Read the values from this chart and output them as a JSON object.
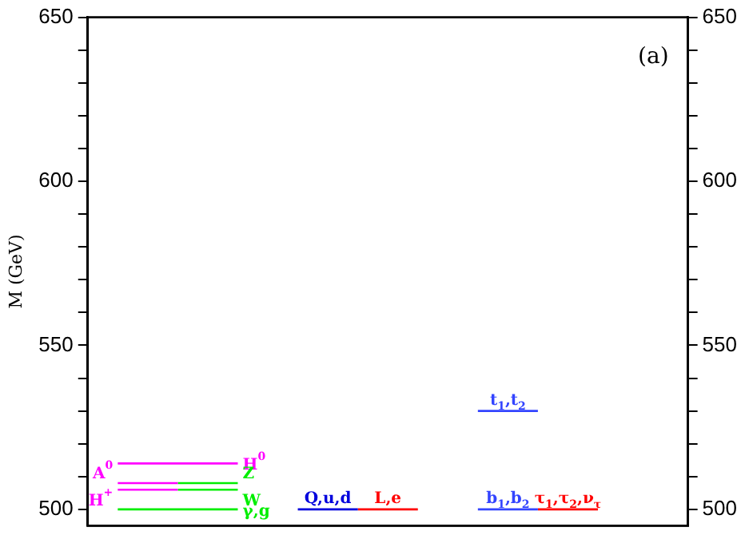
{
  "chart_data": {
    "type": "line",
    "ylabel": "M (GeV)",
    "annotations": [
      "(a)"
    ],
    "categories": [
      null,
      null,
      null,
      null,
      null,
      null,
      null,
      null,
      null,
      null
    ],
    "series": [
      {
        "name": "H$^{0}$",
        "color": "#ff00ff",
        "values": [
          514,
          514,
          514,
          null,
          null,
          null,
          null,
          null,
          null,
          null
        ]
      },
      {
        "name": "A$^{0}$",
        "color": "#ff00ff",
        "values": [
          508,
          508,
          null,
          null,
          null,
          null,
          null,
          null,
          null,
          null
        ]
      },
      {
        "name": "Z",
        "color": "#00ee00",
        "values": [
          null,
          508,
          508,
          null,
          null,
          null,
          null,
          null,
          null,
          null
        ]
      },
      {
        "name": "H$^{+}$",
        "color": "#ff00ff",
        "values": [
          506,
          506,
          null,
          null,
          null,
          null,
          null,
          null,
          null,
          null
        ]
      },
      {
        "name": "W",
        "color": "#00ee00",
        "values": [
          null,
          506,
          506,
          null,
          null,
          null,
          null,
          null,
          null,
          null
        ]
      },
      {
        "name": "γ,g",
        "color": "#00ee00",
        "values": [
          500,
          500,
          500,
          null,
          null,
          null,
          null,
          null,
          null,
          null
        ]
      },
      {
        "name": "Q,u,d",
        "color": "#0000dd",
        "values": [
          null,
          null,
          null,
          500,
          500,
          null,
          null,
          null,
          null,
          null
        ]
      },
      {
        "name": "L,e",
        "color": "#ff0000",
        "values": [
          null,
          null,
          null,
          null,
          500,
          500,
          null,
          null,
          null,
          null
        ]
      },
      {
        "name": "b$_{1}$,b$_{2}$",
        "color": "#3344ff",
        "values": [
          null,
          null,
          null,
          null,
          null,
          null,
          500,
          500,
          null,
          null
        ]
      },
      {
        "name": "τ$_{1}$,τ$_{2}$,ν$_{τ}$",
        "color": "#ff0000",
        "values": [
          null,
          null,
          null,
          null,
          null,
          null,
          null,
          500,
          500,
          null
        ]
      },
      {
        "name": "t$_{1}$,t$_{2}$",
        "color": "#3344ff",
        "values": [
          null,
          null,
          null,
          null,
          null,
          null,
          530,
          530,
          null,
          null
        ]
      }
    ],
    "ylim": [
      495,
      650
    ],
    "yticks": [
      500,
      {
        "value": 510,
        "label": null
      },
      {
        "value": 520,
        "label": null
      },
      {
        "value": 530,
        "label": null
      },
      {
        "value": 540,
        "label": null
      },
      550,
      {
        "value": 560,
        "label": null
      },
      {
        "value": 570,
        "label": null
      },
      {
        "value": 580,
        "label": null
      },
      {
        "value": 590,
        "label": null
      },
      600,
      {
        "value": 610,
        "label": null
      },
      {
        "value": 620,
        "label": null
      },
      {
        "value": 630,
        "label": null
      },
      {
        "value": 640,
        "label": null
      },
      650
    ],
    "y2lim": [
      495,
      650
    ],
    "y2ticks": [
      500,
      {
        "value": 510,
        "label": null
      },
      {
        "value": 520,
        "label": null
      },
      {
        "value": 530,
        "label": null
      },
      {
        "value": 540,
        "label": null
      },
      550,
      {
        "value": 560,
        "label": null
      },
      {
        "value": 570,
        "label": null
      },
      {
        "value": 580,
        "label": null
      },
      {
        "value": 590,
        "label": null
      },
      600,
      {
        "value": 610,
        "label": null
      },
      {
        "value": 620,
        "label": null
      },
      {
        "value": 630,
        "label": null
      },
      {
        "value": 640,
        "label": null
      },
      650
    ],
    "tick_labels": "y",
    "grid": false,
    "legend": false,
    "marker": "none",
    "line_style": "solid"
  }
}
